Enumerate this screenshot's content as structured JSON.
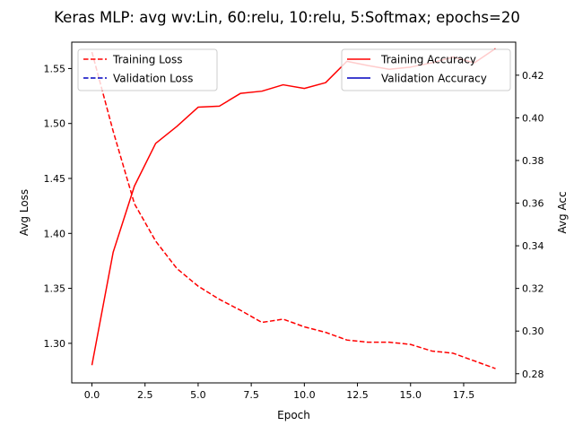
{
  "chart_data": {
    "type": "line",
    "title": "Keras MLP: avg wv:Lin, 60:relu, 10:relu, 5:Softmax; epochs=20",
    "xlabel": "Epoch",
    "ylabel_left": "Avg Loss",
    "ylabel_right": "Avg Acc",
    "xlim": [
      -0.95,
      19.95
    ],
    "ylim_left": [
      1.264,
      1.574
    ],
    "ylim_right": [
      0.2757,
      0.4355
    ],
    "x_ticks": [
      0,
      2.5,
      5,
      7.5,
      10,
      12.5,
      15,
      17.5
    ],
    "x_tick_labels": [
      "0.0",
      "2.5",
      "5.0",
      "7.5",
      "10.0",
      "12.5",
      "15.0",
      "17.5"
    ],
    "y_left_ticks": [
      1.3,
      1.35,
      1.4,
      1.45,
      1.5,
      1.55
    ],
    "y_left_tick_labels": [
      "1.30",
      "1.35",
      "1.40",
      "1.45",
      "1.50",
      "1.55"
    ],
    "y_right_ticks": [
      0.28,
      0.3,
      0.32,
      0.34,
      0.36,
      0.38,
      0.4,
      0.42
    ],
    "y_right_tick_labels": [
      "0.28",
      "0.30",
      "0.32",
      "0.34",
      "0.36",
      "0.38",
      "0.40",
      "0.42"
    ],
    "grid": false,
    "x": [
      0,
      1,
      2,
      3,
      4,
      5,
      6,
      7,
      8,
      9,
      10,
      11,
      12,
      13,
      14,
      15,
      16,
      17,
      18,
      19
    ],
    "series": [
      {
        "name": "Training Loss",
        "axis": "left",
        "color": "#ff0000",
        "dash": "dashed",
        "values": [
          1.565,
          1.493,
          1.427,
          1.393,
          1.368,
          1.352,
          1.34,
          1.33,
          1.319,
          1.322,
          1.315,
          1.31,
          1.303,
          1.301,
          1.301,
          1.299,
          1.293,
          1.291,
          1.284,
          1.277
        ]
      },
      {
        "name": "Training Accuracy",
        "axis": "right",
        "color": "#ff0000",
        "dash": "solid",
        "values": [
          0.284,
          0.337,
          0.368,
          0.388,
          0.396,
          0.405,
          0.4055,
          0.4115,
          0.4125,
          0.4155,
          0.4138,
          0.4165,
          0.4265,
          0.4245,
          0.4228,
          0.4238,
          0.4258,
          0.4285,
          0.4258,
          0.4325
        ]
      }
    ],
    "legend_left": {
      "placement": "top-left",
      "entries": [
        {
          "label": "Training Loss",
          "color": "#ff0000",
          "dash": "dashed"
        },
        {
          "label": "Validation Loss",
          "color": "#0000bf",
          "dash": "dashed"
        }
      ]
    },
    "legend_right": {
      "placement": "top-right",
      "entries": [
        {
          "label": "Training Accuracy",
          "color": "#ff0000",
          "dash": "solid"
        },
        {
          "label": "Validation Accuracy",
          "color": "#0000bf",
          "dash": "solid"
        }
      ]
    }
  }
}
